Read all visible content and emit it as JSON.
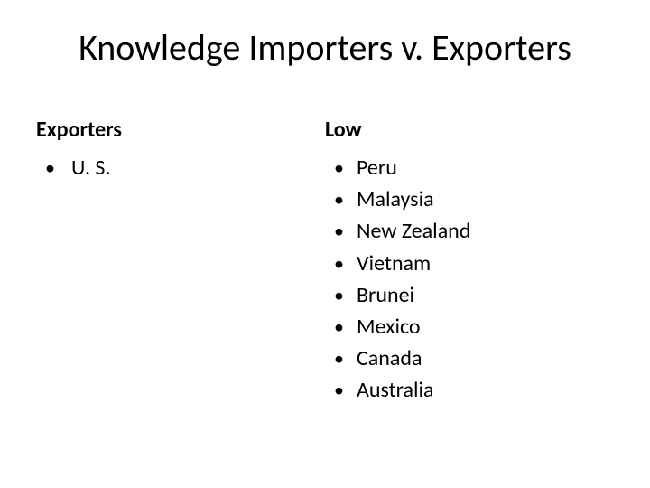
{
  "title": "Knowledge Importers v. Exporters",
  "left": {
    "heading": "Exporters",
    "items": [
      "U. S."
    ]
  },
  "right": {
    "heading": "Low",
    "items": [
      "Peru",
      "Malaysia",
      "New Zealand",
      "Vietnam",
      "Brunei",
      "Mexico",
      "Canada",
      "Australia"
    ]
  },
  "colors": {
    "background": "#ffffff",
    "text": "#000000"
  },
  "typography": {
    "title_fontsize": 40,
    "heading_fontsize": 24,
    "item_fontsize": 24
  }
}
